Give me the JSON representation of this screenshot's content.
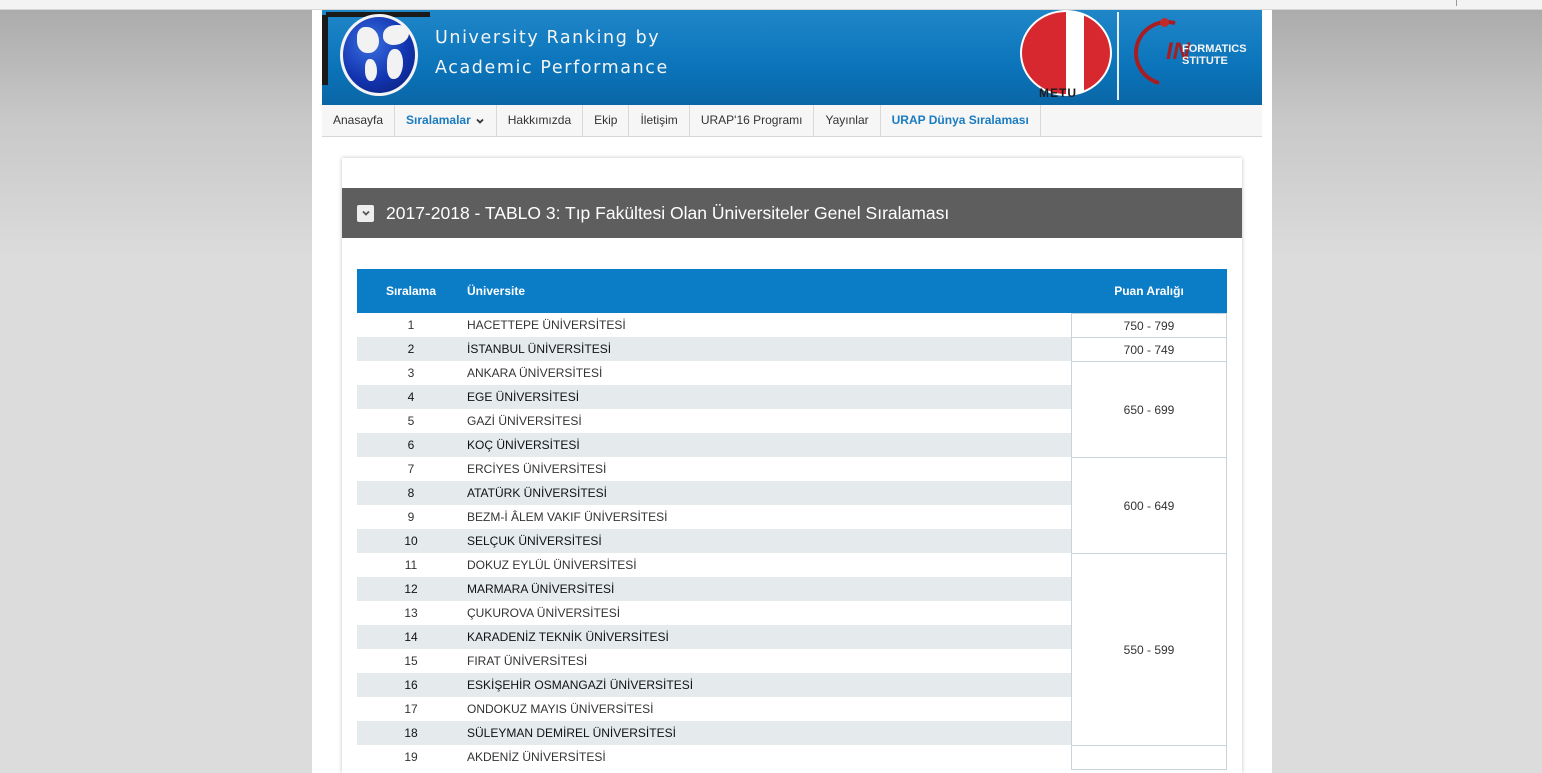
{
  "header": {
    "title_line1": "University Ranking by",
    "title_line2": "Academic Performance",
    "metu_label": "METU",
    "ii_initials": "IN",
    "ii_word1": "FORMATICS",
    "ii_word2": "STITUTE"
  },
  "nav": {
    "items": [
      {
        "label": "Anasayfa"
      },
      {
        "label": "Sıralamalar"
      },
      {
        "label": "Hakkımızda"
      },
      {
        "label": "Ekip"
      },
      {
        "label": "İletişim"
      },
      {
        "label": "URAP'16 Programı"
      },
      {
        "label": "Yayınlar"
      },
      {
        "label": "URAP Dünya Sıralaması"
      }
    ]
  },
  "section": {
    "title": "2017-2018 - TABLO 3: Tıp Fakültesi Olan Üniversiteler Genel Sıralaması"
  },
  "table": {
    "columns": {
      "rank": "Sıralama",
      "university": "Üniversite",
      "score": "Puan Aralığı"
    },
    "rows": [
      {
        "rank": "1",
        "university": "HACETTEPE ÜNİVERSİTESİ"
      },
      {
        "rank": "2",
        "university": "İSTANBUL ÜNİVERSİTESİ"
      },
      {
        "rank": "3",
        "university": "ANKARA ÜNİVERSİTESİ"
      },
      {
        "rank": "4",
        "university": "EGE ÜNİVERSİTESİ"
      },
      {
        "rank": "5",
        "university": "GAZİ ÜNİVERSİTESİ"
      },
      {
        "rank": "6",
        "university": "KOÇ ÜNİVERSİTESİ"
      },
      {
        "rank": "7",
        "university": "ERCİYES ÜNİVERSİTESİ"
      },
      {
        "rank": "8",
        "university": "ATATÜRK ÜNİVERSİTESİ"
      },
      {
        "rank": "9",
        "university": "BEZM-İ ÂLEM VAKIF ÜNİVERSİTESİ"
      },
      {
        "rank": "10",
        "university": "SELÇUK ÜNİVERSİTESİ"
      },
      {
        "rank": "11",
        "university": "DOKUZ EYLÜL ÜNİVERSİTESİ"
      },
      {
        "rank": "12",
        "university": "MARMARA ÜNİVERSİTESİ"
      },
      {
        "rank": "13",
        "university": "ÇUKUROVA ÜNİVERSİTESİ"
      },
      {
        "rank": "14",
        "university": "KARADENİZ TEKNİK ÜNİVERSİTESİ"
      },
      {
        "rank": "15",
        "university": "FIRAT ÜNİVERSİTESİ"
      },
      {
        "rank": "16",
        "university": "ESKİŞEHİR OSMANGAZİ ÜNİVERSİTESİ"
      },
      {
        "rank": "17",
        "university": "ONDOKUZ MAYIS ÜNİVERSİTESİ"
      },
      {
        "rank": "18",
        "university": "SÜLEYMAN DEMİREL ÜNİVERSİTESİ"
      },
      {
        "rank": "19",
        "university": "AKDENİZ ÜNİVERSİTESİ"
      }
    ],
    "score_groups": [
      {
        "range": "750 - 799",
        "rows": 1
      },
      {
        "range": "700 - 749",
        "rows": 1
      },
      {
        "range": "650 - 699",
        "rows": 4
      },
      {
        "range": "600 - 649",
        "rows": 4
      },
      {
        "range": "550 - 599",
        "rows": 8
      },
      {
        "range": "",
        "rows": 1
      }
    ]
  }
}
